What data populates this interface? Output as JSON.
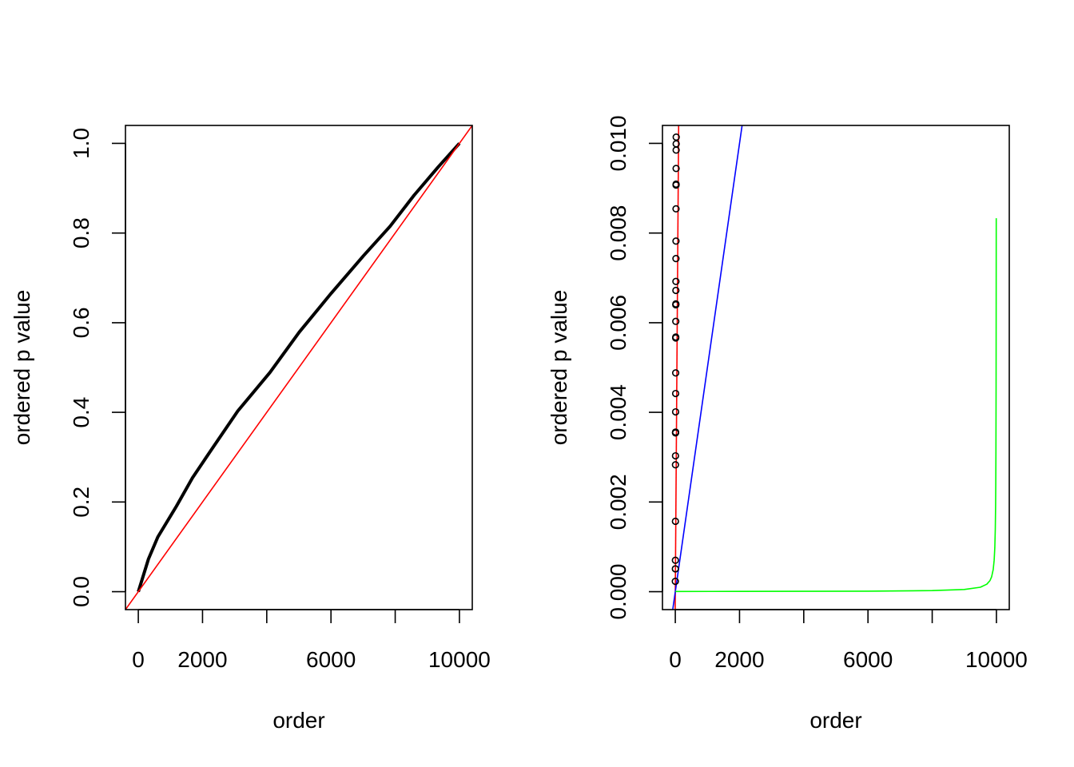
{
  "chart_data": [
    {
      "type": "line",
      "xlabel": "order",
      "ylabel": "ordered p value",
      "xlim": [
        -400,
        10400
      ],
      "ylim": [
        -0.04,
        1.04
      ],
      "x_ticks": [
        0,
        2000,
        4000,
        6000,
        8000,
        10000
      ],
      "x_tick_labels": [
        "0",
        "2000",
        "",
        "6000",
        "",
        "10000"
      ],
      "y_ticks": [
        0,
        0.2,
        0.4,
        0.6,
        0.8,
        1.0
      ],
      "y_tick_labels": [
        "0.0",
        "0.2",
        "0.4",
        "0.6",
        "0.8",
        "1.0"
      ],
      "grid": false,
      "series": [
        {
          "style": "thick-line",
          "color": "#000000",
          "x": [
            0,
            316,
            607,
            1189,
            1687,
            2269,
            3100,
            4098,
            5012,
            6010,
            7007,
            7839,
            8587,
            9335,
            10000
          ],
          "y": [
            0,
            0.073,
            0.122,
            0.191,
            0.254,
            0.316,
            0.403,
            0.489,
            0.579,
            0.666,
            0.749,
            0.815,
            0.884,
            0.947,
            1.0
          ]
        },
        {
          "style": "abline",
          "color": "#ff0000",
          "intercept": 0,
          "slope": 0.0001
        }
      ]
    },
    {
      "type": "scatter",
      "xlabel": "order",
      "ylabel": "ordered p value",
      "xlim": [
        -400,
        10400
      ],
      "ylim": [
        -0.0004,
        0.0104
      ],
      "x_ticks": [
        0,
        2000,
        4000,
        6000,
        8000,
        10000
      ],
      "x_tick_labels": [
        "0",
        "2000",
        "",
        "6000",
        "",
        "10000"
      ],
      "y_ticks": [
        0,
        0.002,
        0.004,
        0.006,
        0.008,
        0.01
      ],
      "y_tick_labels": [
        "0.000",
        "0.002",
        "0.004",
        "0.006",
        "0.008",
        "0.010"
      ],
      "grid": false,
      "points": {
        "color": "#000000",
        "y": [
          0.00023,
          0.00051,
          0.0007,
          0.00157,
          0.00283,
          0.00303,
          0.00354,
          0.00355,
          0.00356,
          0.00401,
          0.00442,
          0.00488,
          0.00566,
          0.00568,
          0.00603,
          0.0064,
          0.00642,
          0.00672,
          0.00692,
          0.00743,
          0.00782,
          0.00854,
          0.00907,
          0.00909,
          0.00944,
          0.00985,
          0.00999,
          0.01014
        ]
      },
      "series": [
        {
          "style": "abline",
          "color": "#ff0000",
          "intercept": 0,
          "slope": 0.0001
        },
        {
          "style": "abline",
          "color": "#0000ff",
          "intercept": 0,
          "slope": 5e-06
        },
        {
          "style": "line",
          "color": "#00ff00",
          "x": [
            1,
            2000,
            4000,
            6000,
            8000,
            9000,
            9500,
            9700,
            9800,
            9850,
            9900,
            9930,
            9950,
            9965,
            9975,
            9980,
            9985,
            9990,
            9993,
            9995
          ],
          "y": [
            5e-06,
            6.25e-06,
            8.3e-06,
            1.25e-05,
            2.5e-05,
            5e-05,
            9.98e-05,
            0.000166,
            0.000249,
            0.000331,
            0.000495,
            0.000704,
            0.00098,
            0.00139,
            0.00192,
            0.00238,
            0.00313,
            0.00455,
            0.00625,
            0.00833
          ]
        }
      ]
    }
  ]
}
